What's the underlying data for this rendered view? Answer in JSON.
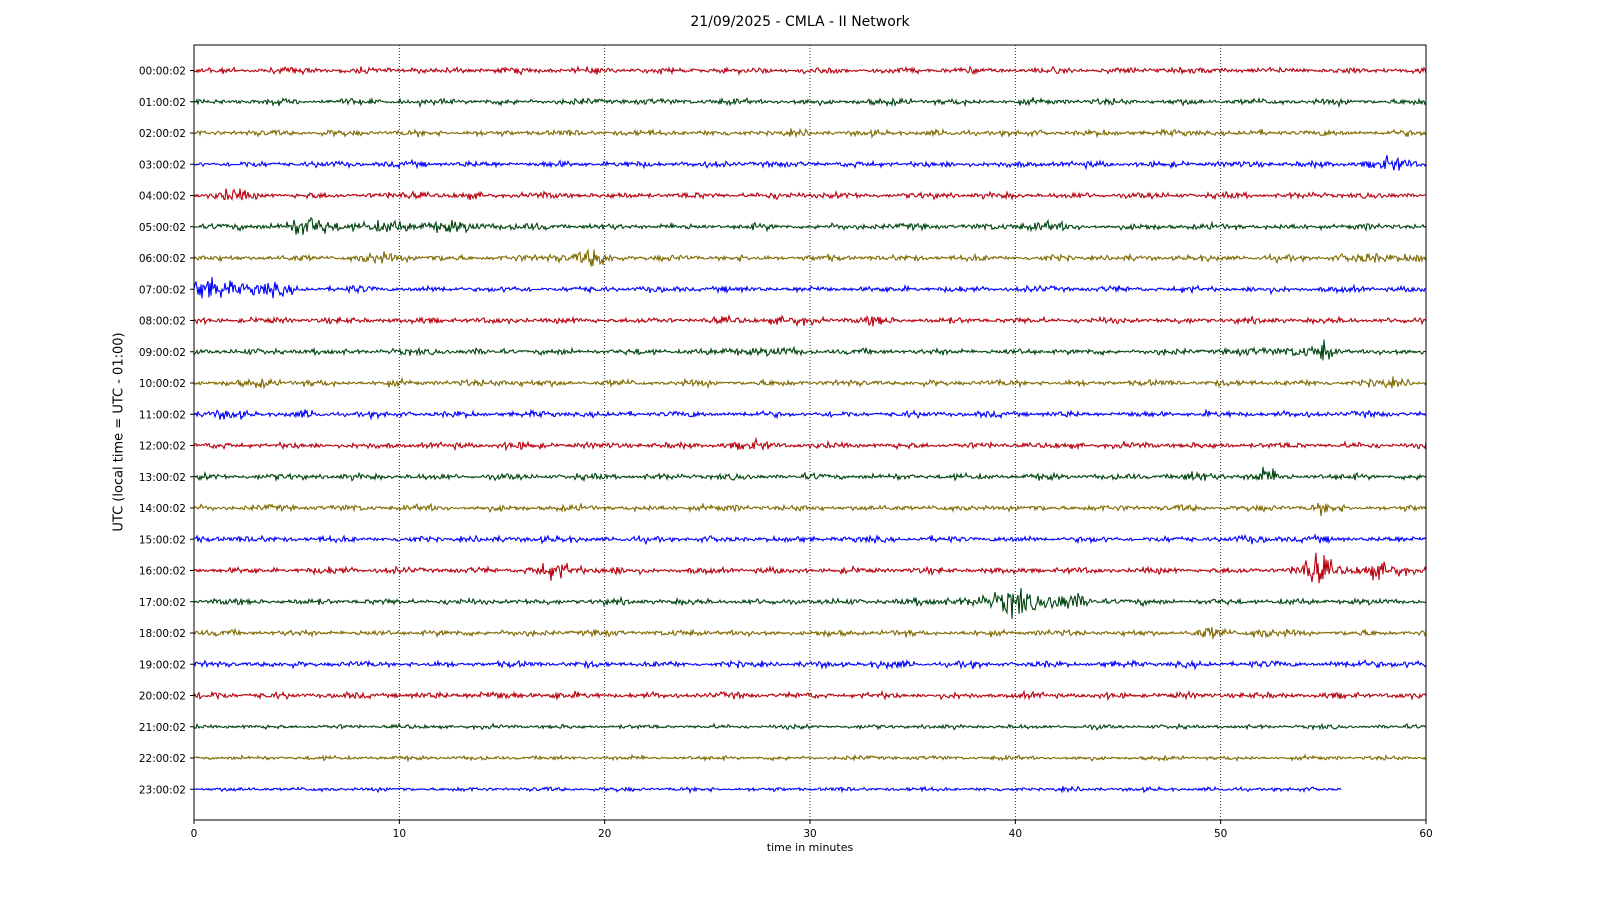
{
  "chart_data": {
    "type": "line",
    "title": "21/09/2025 - CMLA - II Network",
    "xlabel": "time in minutes",
    "ylabel": "UTC (local time = UTC - 01:00)",
    "xlim": [
      0,
      60
    ],
    "x_ticks": [
      "0",
      "10",
      "20",
      "30",
      "40",
      "50",
      "60"
    ],
    "grid": "vertical dotted at x = 10, 20, 30, 40, 50",
    "colors": [
      "#b8000e",
      "#00450f",
      "#7f6a00",
      "#0000ff"
    ],
    "rows": [
      {
        "label": "00:00:02",
        "end_minute": 60,
        "events": [
          {
            "t": 5.5,
            "amp": 1.2,
            "dur": 0.5
          },
          {
            "t": 22.5,
            "amp": 1.1,
            "dur": 0.4
          },
          {
            "t": 50,
            "amp": 1.1,
            "dur": 0.5
          }
        ]
      },
      {
        "label": "01:00:02",
        "end_minute": 60,
        "events": [
          {
            "t": 34.5,
            "amp": 1.4,
            "dur": 0.4
          },
          {
            "t": 24.2,
            "amp": 1.1,
            "dur": 0.3
          }
        ]
      },
      {
        "label": "02:00:02",
        "end_minute": 60,
        "events": [
          {
            "t": 6.8,
            "amp": 1.1,
            "dur": 0.5
          }
        ]
      },
      {
        "label": "03:00:02",
        "end_minute": 60,
        "events": [
          {
            "t": 58.3,
            "amp": 2.2,
            "dur": 1.3
          }
        ]
      },
      {
        "label": "04:00:02",
        "end_minute": 60,
        "events": [
          {
            "t": 1.7,
            "amp": 2.3,
            "dur": 1.0
          },
          {
            "t": 11,
            "amp": 1.6,
            "dur": 0.8
          },
          {
            "t": 29.5,
            "amp": 1.3,
            "dur": 1.2
          }
        ]
      },
      {
        "label": "05:00:02",
        "end_minute": 60,
        "events": [
          {
            "t": 5.8,
            "amp": 3.5,
            "dur": 1.8
          },
          {
            "t": 10.5,
            "amp": 2.6,
            "dur": 1.6
          },
          {
            "t": 14,
            "amp": 1.8,
            "dur": 1.8
          },
          {
            "t": 33,
            "amp": 1.4,
            "dur": 0.6
          },
          {
            "t": 41,
            "amp": 2.3,
            "dur": 1.0
          }
        ]
      },
      {
        "label": "06:00:02",
        "end_minute": 60,
        "events": [
          {
            "t": 9.5,
            "amp": 2.0,
            "dur": 1.5
          },
          {
            "t": 17.6,
            "amp": 2.4,
            "dur": 0.6
          },
          {
            "t": 19.5,
            "amp": 3.0,
            "dur": 1.0
          },
          {
            "t": 58.5,
            "amp": 2.2,
            "dur": 2.2
          }
        ]
      },
      {
        "label": "07:00:02",
        "end_minute": 60,
        "events": [
          {
            "t": 1.6,
            "amp": 3.8,
            "dur": 2.4
          },
          {
            "t": 7.9,
            "amp": 1.3,
            "dur": 0.4
          }
        ]
      },
      {
        "label": "08:00:02",
        "end_minute": 60,
        "events": [
          {
            "t": 28.5,
            "amp": 1.6,
            "dur": 1.8
          },
          {
            "t": 33.2,
            "amp": 1.8,
            "dur": 0.6
          }
        ]
      },
      {
        "label": "09:00:02",
        "end_minute": 60,
        "events": [
          {
            "t": 12,
            "amp": 1.5,
            "dur": 0.6
          },
          {
            "t": 27.5,
            "amp": 1.9,
            "dur": 1.6
          },
          {
            "t": 53.3,
            "amp": 2.4,
            "dur": 1.5
          },
          {
            "t": 55.1,
            "amp": 3.0,
            "dur": 0.3
          }
        ]
      },
      {
        "label": "10:00:02",
        "end_minute": 60,
        "events": [
          {
            "t": 3.6,
            "amp": 2.1,
            "dur": 0.7
          },
          {
            "t": 15.4,
            "amp": 2.0,
            "dur": 0.8
          },
          {
            "t": 58.5,
            "amp": 1.5,
            "dur": 1.8
          }
        ]
      },
      {
        "label": "11:00:02",
        "end_minute": 60,
        "events": [
          {
            "t": 1.2,
            "amp": 1.7,
            "dur": 1.5
          },
          {
            "t": 5.5,
            "amp": 1.3,
            "dur": 0.6
          }
        ]
      },
      {
        "label": "12:00:02",
        "end_minute": 60,
        "events": [
          {
            "t": 15.5,
            "amp": 1.4,
            "dur": 1.2
          },
          {
            "t": 27.2,
            "amp": 1.6,
            "dur": 1.4
          }
        ]
      },
      {
        "label": "13:00:02",
        "end_minute": 60,
        "events": [
          {
            "t": 3.2,
            "amp": 1.3,
            "dur": 0.6
          },
          {
            "t": 48.9,
            "amp": 1.8,
            "dur": 0.8
          },
          {
            "t": 50.3,
            "amp": 1.5,
            "dur": 0.4
          },
          {
            "t": 52.2,
            "amp": 2.8,
            "dur": 0.7
          },
          {
            "t": 54.5,
            "amp": 1.3,
            "dur": 0.4
          }
        ]
      },
      {
        "label": "14:00:02",
        "end_minute": 60,
        "events": [
          {
            "t": 24.5,
            "amp": 1.4,
            "dur": 0.7
          },
          {
            "t": 54.9,
            "amp": 2.2,
            "dur": 0.6
          }
        ]
      },
      {
        "label": "15:00:02",
        "end_minute": 60,
        "events": [
          {
            "t": 1.5,
            "amp": 1.3,
            "dur": 1.2
          },
          {
            "t": 16.5,
            "amp": 1.4,
            "dur": 1.2
          },
          {
            "t": 52.5,
            "amp": 1.4,
            "dur": 1.8
          }
        ]
      },
      {
        "label": "16:00:02",
        "end_minute": 60,
        "events": [
          {
            "t": 7.2,
            "amp": 1.7,
            "dur": 0.7
          },
          {
            "t": 16.8,
            "amp": 1.9,
            "dur": 0.8
          },
          {
            "t": 18.2,
            "amp": 2.5,
            "dur": 1.0
          },
          {
            "t": 20.2,
            "amp": 1.7,
            "dur": 0.6
          },
          {
            "t": 54.6,
            "amp": 3.0,
            "dur": 0.8
          },
          {
            "t": 57,
            "amp": 2.6,
            "dur": 2.6
          }
        ]
      },
      {
        "label": "17:00:02",
        "end_minute": 60,
        "events": [
          {
            "t": 37.5,
            "amp": 2.3,
            "dur": 1.6
          },
          {
            "t": 40,
            "amp": 3.6,
            "dur": 0.8
          },
          {
            "t": 41.5,
            "amp": 3.2,
            "dur": 1.3
          },
          {
            "t": 43.5,
            "amp": 1.8,
            "dur": 1.2
          }
        ]
      },
      {
        "label": "18:00:02",
        "end_minute": 60,
        "events": [
          {
            "t": 14.5,
            "amp": 1.3,
            "dur": 1.0
          },
          {
            "t": 49.5,
            "amp": 1.9,
            "dur": 0.8
          },
          {
            "t": 51.8,
            "amp": 2.9,
            "dur": 0.6
          }
        ]
      },
      {
        "label": "19:00:02",
        "end_minute": 60,
        "events": [
          {
            "t": 33.5,
            "amp": 1.4,
            "dur": 1.0
          },
          {
            "t": 51.3,
            "amp": 1.5,
            "dur": 0.5
          },
          {
            "t": 58,
            "amp": 1.6,
            "dur": 1.8
          }
        ]
      },
      {
        "label": "20:00:02",
        "end_minute": 60,
        "events": [
          {
            "t": 1.2,
            "amp": 1.8,
            "dur": 0.7
          },
          {
            "t": 14,
            "amp": 1.6,
            "dur": 1.6
          },
          {
            "t": 17.6,
            "amp": 1.9,
            "dur": 0.5
          }
        ]
      },
      {
        "label": "21:00:02",
        "end_minute": 60,
        "events": []
      },
      {
        "label": "22:00:02",
        "end_minute": 60,
        "events": []
      },
      {
        "label": "23:00:02",
        "end_minute": 55.9,
        "events": []
      }
    ]
  }
}
